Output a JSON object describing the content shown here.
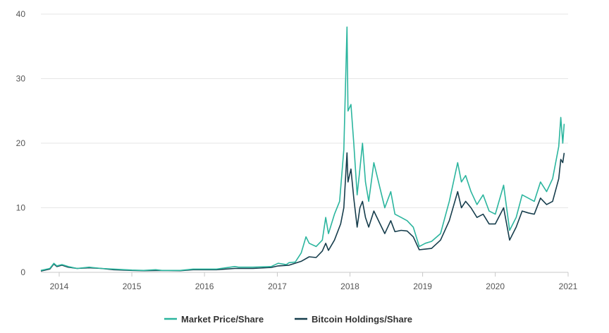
{
  "chart_data": {
    "type": "line",
    "title": "",
    "xlabel": "",
    "ylabel": "",
    "xlim": [
      "2013-10-01",
      "2021-01-01"
    ],
    "ylim": [
      0,
      40
    ],
    "grid": true,
    "legend_position": "bottom",
    "x_ticks": [
      "2014",
      "2015",
      "2016",
      "2017",
      "2018",
      "2019",
      "2020",
      "2021"
    ],
    "y_ticks": [
      "0",
      "10",
      "20",
      "30",
      "40"
    ],
    "series": [
      {
        "name": "Market Price/Share",
        "color": "#2bb59e",
        "points": [
          [
            "2013-10-01",
            0.3
          ],
          [
            "2013-11-15",
            0.6
          ],
          [
            "2013-12-05",
            1.4
          ],
          [
            "2013-12-20",
            1.0
          ],
          [
            "2014-01-15",
            1.2
          ],
          [
            "2014-02-15",
            0.9
          ],
          [
            "2014-04-01",
            0.6
          ],
          [
            "2014-06-01",
            0.8
          ],
          [
            "2014-08-01",
            0.6
          ],
          [
            "2014-10-01",
            0.5
          ],
          [
            "2015-01-01",
            0.35
          ],
          [
            "2015-03-01",
            0.3
          ],
          [
            "2015-05-01",
            0.4
          ],
          [
            "2015-06-01",
            0.3
          ],
          [
            "2015-09-01",
            0.3
          ],
          [
            "2015-11-05",
            0.5
          ],
          [
            "2016-01-01",
            0.5
          ],
          [
            "2016-03-01",
            0.5
          ],
          [
            "2016-06-01",
            0.9
          ],
          [
            "2016-06-20",
            0.8
          ],
          [
            "2016-09-01",
            0.8
          ],
          [
            "2016-12-01",
            0.9
          ],
          [
            "2017-01-05",
            1.4
          ],
          [
            "2017-02-15",
            1.2
          ],
          [
            "2017-03-01",
            1.5
          ],
          [
            "2017-04-01",
            1.6
          ],
          [
            "2017-05-01",
            3.0
          ],
          [
            "2017-05-25",
            5.5
          ],
          [
            "2017-06-10",
            4.5
          ],
          [
            "2017-07-15",
            4.0
          ],
          [
            "2017-08-15",
            5.0
          ],
          [
            "2017-09-01",
            8.5
          ],
          [
            "2017-09-15",
            6.0
          ],
          [
            "2017-10-15",
            9.0
          ],
          [
            "2017-11-10",
            11.0
          ],
          [
            "2017-12-01",
            19.0
          ],
          [
            "2017-12-17",
            38.0
          ],
          [
            "2017-12-22",
            25.0
          ],
          [
            "2018-01-06",
            26.0
          ],
          [
            "2018-01-20",
            20.0
          ],
          [
            "2018-02-06",
            12.0
          ],
          [
            "2018-02-20",
            16.0
          ],
          [
            "2018-03-05",
            20.0
          ],
          [
            "2018-03-20",
            14.0
          ],
          [
            "2018-04-05",
            11.0
          ],
          [
            "2018-05-01",
            17.0
          ],
          [
            "2018-06-01",
            13.0
          ],
          [
            "2018-06-25",
            10.0
          ],
          [
            "2018-07-25",
            12.5
          ],
          [
            "2018-08-15",
            9.0
          ],
          [
            "2018-09-15",
            8.5
          ],
          [
            "2018-10-15",
            8.0
          ],
          [
            "2018-11-15",
            7.0
          ],
          [
            "2018-12-15",
            4.0
          ],
          [
            "2019-01-15",
            4.5
          ],
          [
            "2019-02-15",
            4.8
          ],
          [
            "2019-04-01",
            6.0
          ],
          [
            "2019-05-15",
            11.0
          ],
          [
            "2019-06-26",
            17.0
          ],
          [
            "2019-07-15",
            14.0
          ],
          [
            "2019-08-05",
            15.0
          ],
          [
            "2019-09-01",
            12.5
          ],
          [
            "2019-10-01",
            10.5
          ],
          [
            "2019-11-01",
            12.0
          ],
          [
            "2019-12-01",
            9.5
          ],
          [
            "2020-01-01",
            9.0
          ],
          [
            "2020-02-12",
            13.5
          ],
          [
            "2020-03-13",
            6.5
          ],
          [
            "2020-04-15",
            8.5
          ],
          [
            "2020-05-15",
            12.0
          ],
          [
            "2020-06-15",
            11.5
          ],
          [
            "2020-07-15",
            11.0
          ],
          [
            "2020-08-15",
            14.0
          ],
          [
            "2020-09-15",
            12.5
          ],
          [
            "2020-10-15",
            14.5
          ],
          [
            "2020-11-15",
            19.5
          ],
          [
            "2020-11-25",
            24.0
          ],
          [
            "2020-12-05",
            20.0
          ],
          [
            "2020-12-12",
            23.0
          ]
        ]
      },
      {
        "name": "Bitcoin Holdings/Share",
        "color": "#163d4c",
        "points": [
          [
            "2013-10-01",
            0.2
          ],
          [
            "2013-11-15",
            0.5
          ],
          [
            "2013-12-05",
            1.3
          ],
          [
            "2013-12-20",
            0.9
          ],
          [
            "2014-01-15",
            1.1
          ],
          [
            "2014-02-15",
            0.8
          ],
          [
            "2014-04-01",
            0.6
          ],
          [
            "2014-06-01",
            0.7
          ],
          [
            "2014-08-01",
            0.6
          ],
          [
            "2014-10-01",
            0.4
          ],
          [
            "2015-01-01",
            0.3
          ],
          [
            "2015-03-01",
            0.25
          ],
          [
            "2015-06-01",
            0.3
          ],
          [
            "2015-09-01",
            0.25
          ],
          [
            "2015-11-05",
            0.4
          ],
          [
            "2016-01-01",
            0.4
          ],
          [
            "2016-03-01",
            0.4
          ],
          [
            "2016-06-01",
            0.6
          ],
          [
            "2016-09-01",
            0.6
          ],
          [
            "2016-12-01",
            0.75
          ],
          [
            "2017-01-05",
            1.0
          ],
          [
            "2017-03-01",
            1.1
          ],
          [
            "2017-05-01",
            1.7
          ],
          [
            "2017-06-10",
            2.4
          ],
          [
            "2017-07-15",
            2.3
          ],
          [
            "2017-08-15",
            3.3
          ],
          [
            "2017-09-01",
            4.5
          ],
          [
            "2017-09-15",
            3.4
          ],
          [
            "2017-10-15",
            5.0
          ],
          [
            "2017-11-15",
            7.5
          ],
          [
            "2017-12-01",
            10.0
          ],
          [
            "2017-12-17",
            18.5
          ],
          [
            "2017-12-22",
            14.0
          ],
          [
            "2018-01-06",
            16.0
          ],
          [
            "2018-01-20",
            11.5
          ],
          [
            "2018-02-06",
            7.0
          ],
          [
            "2018-02-20",
            10.0
          ],
          [
            "2018-03-05",
            11.0
          ],
          [
            "2018-03-20",
            8.5
          ],
          [
            "2018-04-05",
            7.0
          ],
          [
            "2018-05-01",
            9.5
          ],
          [
            "2018-06-01",
            7.5
          ],
          [
            "2018-06-25",
            6.0
          ],
          [
            "2018-07-25",
            8.0
          ],
          [
            "2018-08-15",
            6.3
          ],
          [
            "2018-09-15",
            6.5
          ],
          [
            "2018-10-15",
            6.4
          ],
          [
            "2018-11-15",
            5.5
          ],
          [
            "2018-12-15",
            3.5
          ],
          [
            "2019-01-15",
            3.6
          ],
          [
            "2019-02-15",
            3.7
          ],
          [
            "2019-04-01",
            5.0
          ],
          [
            "2019-05-15",
            8.0
          ],
          [
            "2019-06-26",
            12.5
          ],
          [
            "2019-07-15",
            10.0
          ],
          [
            "2019-08-05",
            11.0
          ],
          [
            "2019-09-01",
            10.0
          ],
          [
            "2019-10-01",
            8.5
          ],
          [
            "2019-11-01",
            9.0
          ],
          [
            "2019-12-01",
            7.5
          ],
          [
            "2020-01-01",
            7.5
          ],
          [
            "2020-02-12",
            10.0
          ],
          [
            "2020-03-13",
            5.0
          ],
          [
            "2020-04-15",
            7.0
          ],
          [
            "2020-05-15",
            9.5
          ],
          [
            "2020-06-15",
            9.2
          ],
          [
            "2020-07-15",
            9.0
          ],
          [
            "2020-08-15",
            11.5
          ],
          [
            "2020-09-15",
            10.5
          ],
          [
            "2020-10-15",
            11.0
          ],
          [
            "2020-11-15",
            14.5
          ],
          [
            "2020-11-25",
            17.5
          ],
          [
            "2020-12-05",
            17.0
          ],
          [
            "2020-12-12",
            18.5
          ]
        ]
      }
    ]
  }
}
